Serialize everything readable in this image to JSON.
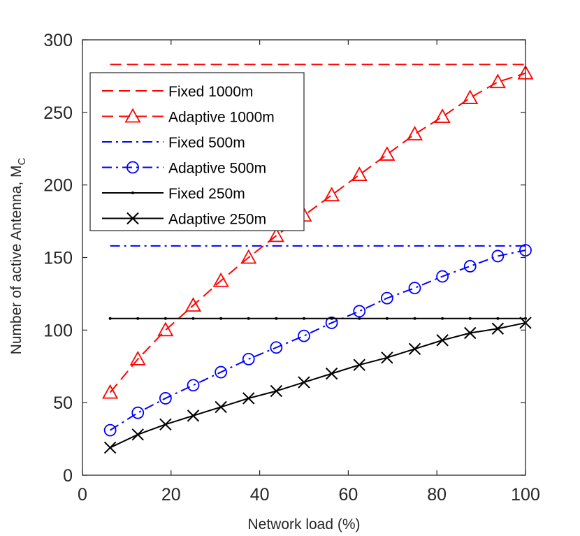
{
  "chart_data": {
    "type": "line",
    "title": "",
    "xlabel": "Network load (%)",
    "ylabel_main": "Number of active Antenna, M",
    "ylabel_sub": "C",
    "xlim": [
      0,
      100
    ],
    "ylim": [
      0,
      300
    ],
    "xticks": [
      0,
      20,
      40,
      60,
      80,
      100
    ],
    "yticks": [
      0,
      50,
      100,
      150,
      200,
      250,
      300
    ],
    "xtick_labels": [
      "0",
      "20",
      "40",
      "60",
      "80",
      "100"
    ],
    "ytick_labels": [
      "0",
      "50",
      "100",
      "150",
      "200",
      "250",
      "300"
    ],
    "grid": false,
    "legend_position": "upper-left",
    "x": [
      6.25,
      12.5,
      18.75,
      25,
      31.25,
      37.5,
      43.75,
      50,
      56.25,
      62.5,
      68.75,
      75,
      81.25,
      87.5,
      93.75,
      100
    ],
    "series": [
      {
        "name": "Fixed 1000m",
        "color": "#ff0000",
        "dash": "dashed",
        "marker": "none",
        "values": [
          283,
          283,
          283,
          283,
          283,
          283,
          283,
          283,
          283,
          283,
          283,
          283,
          283,
          283,
          283,
          283
        ]
      },
      {
        "name": "Adaptive 1000m",
        "color": "#ff0000",
        "dash": "dashed",
        "marker": "triangle",
        "values": [
          57,
          80,
          100,
          117,
          134,
          150,
          165,
          179,
          193,
          207,
          221,
          235,
          247,
          260,
          271,
          277
        ]
      },
      {
        "name": "Fixed 500m",
        "color": "#0000ff",
        "dash": "dashdot",
        "marker": "none",
        "values": [
          158,
          158,
          158,
          158,
          158,
          158,
          158,
          158,
          158,
          158,
          158,
          158,
          158,
          158,
          158,
          158
        ]
      },
      {
        "name": "Adaptive 500m",
        "color": "#0000ff",
        "dash": "dashdot",
        "marker": "circle",
        "values": [
          31,
          43,
          53,
          62,
          71,
          80,
          88,
          96,
          105,
          113,
          122,
          129,
          137,
          144,
          151,
          155
        ]
      },
      {
        "name": "Fixed 250m",
        "color": "#000000",
        "dash": "solid",
        "marker": "dot",
        "values": [
          108,
          108,
          108,
          108,
          108,
          108,
          108,
          108,
          108,
          108,
          108,
          108,
          108,
          108,
          108,
          108
        ]
      },
      {
        "name": "Adaptive 250m",
        "color": "#000000",
        "dash": "solid",
        "marker": "x",
        "values": [
          19,
          28,
          35,
          41,
          47,
          53,
          58,
          64,
          70,
          76,
          81,
          87,
          93,
          98,
          101,
          105
        ]
      }
    ]
  }
}
